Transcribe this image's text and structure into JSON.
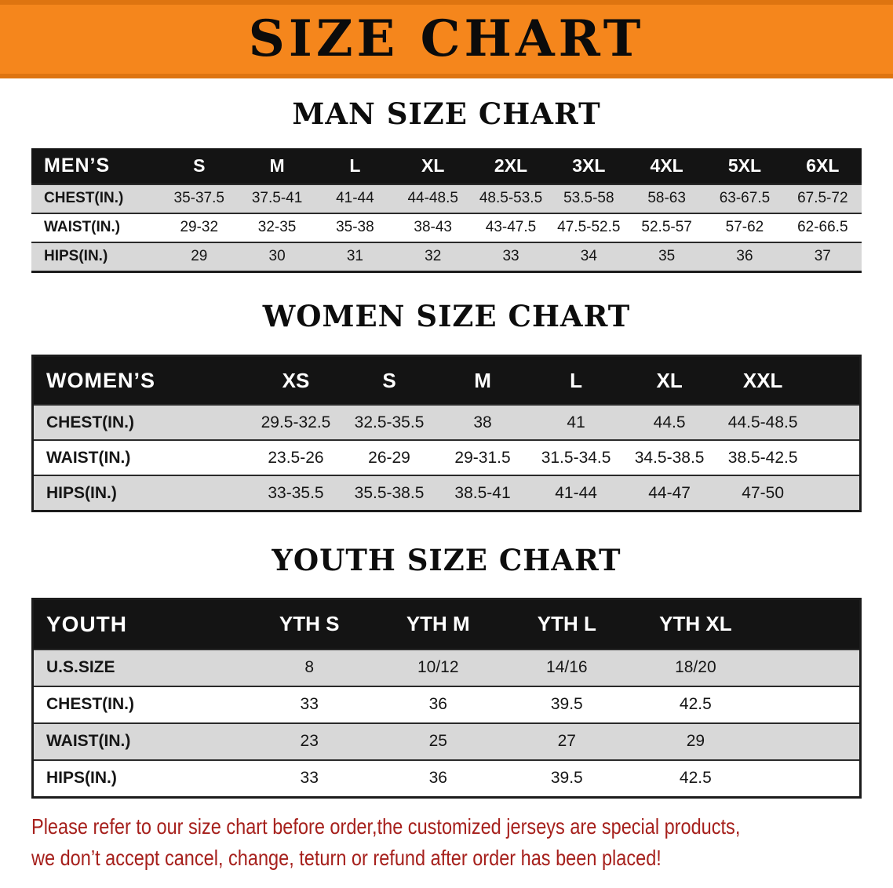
{
  "banner": {
    "title": "SIZE CHART"
  },
  "colors": {
    "banner_bg": "#F5861C",
    "notice_text": "#A6201C"
  },
  "chart_data": [
    {
      "type": "table",
      "title": "MAN SIZE CHART",
      "columns": [
        "MEN’S",
        "S",
        "M",
        "L",
        "XL",
        "2XL",
        "3XL",
        "4XL",
        "5XL",
        "6XL"
      ],
      "rows": [
        [
          "CHEST(IN.)",
          "35-37.5",
          "37.5-41",
          "41-44",
          "44-48.5",
          "48.5-53.5",
          "53.5-58",
          "58-63",
          "63-67.5",
          "67.5-72"
        ],
        [
          "WAIST(IN.)",
          "29-32",
          "32-35",
          "35-38",
          "38-43",
          "43-47.5",
          "47.5-52.5",
          "52.5-57",
          "57-62",
          "62-66.5"
        ],
        [
          "HIPS(IN.)",
          "29",
          "30",
          "31",
          "32",
          "33",
          "34",
          "35",
          "36",
          "37"
        ]
      ]
    },
    {
      "type": "table",
      "title": "WOMEN SIZE CHART",
      "columns": [
        "WOMEN’S",
        "XS",
        "S",
        "M",
        "L",
        "XL",
        "XXL"
      ],
      "rows": [
        [
          "CHEST(IN.)",
          "29.5-32.5",
          "32.5-35.5",
          "38",
          "41",
          "44.5",
          "44.5-48.5"
        ],
        [
          "WAIST(IN.)",
          "23.5-26",
          "26-29",
          "29-31.5",
          "31.5-34.5",
          "34.5-38.5",
          "38.5-42.5"
        ],
        [
          "HIPS(IN.)",
          "33-35.5",
          "35.5-38.5",
          "38.5-41",
          "41-44",
          "44-47",
          "47-50"
        ]
      ]
    },
    {
      "type": "table",
      "title": "YOUTH SIZE CHART",
      "columns": [
        "YOUTH",
        "YTH S",
        "YTH M",
        "YTH L",
        "YTH XL"
      ],
      "rows": [
        [
          "U.S.SIZE",
          "8",
          "10/12",
          "14/16",
          "18/20"
        ],
        [
          "CHEST(IN.)",
          "33",
          "36",
          "39.5",
          "42.5"
        ],
        [
          "WAIST(IN.)",
          "23",
          "25",
          "27",
          "29"
        ],
        [
          "HIPS(IN.)",
          "33",
          "36",
          "39.5",
          "42.5"
        ]
      ]
    }
  ],
  "footer": {
    "line1": "Please refer to our size chart before order,the customized jerseys are special products,",
    "line2": "we don’t accept cancel, change, teturn or refund after order has been placed!"
  }
}
